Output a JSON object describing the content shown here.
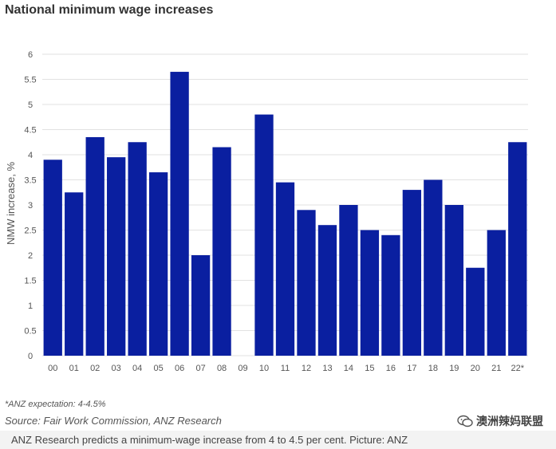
{
  "title": "National minimum wage increases",
  "chart_data": {
    "type": "bar",
    "categories": [
      "00",
      "01",
      "02",
      "03",
      "04",
      "05",
      "06",
      "07",
      "08",
      "09",
      "10",
      "11",
      "12",
      "13",
      "14",
      "15",
      "16",
      "17",
      "18",
      "19",
      "20",
      "21",
      "22*"
    ],
    "values": [
      3.9,
      3.25,
      4.35,
      3.95,
      4.25,
      3.65,
      5.65,
      2.0,
      4.15,
      null,
      4.8,
      3.45,
      2.9,
      2.6,
      3.0,
      2.5,
      2.4,
      3.3,
      3.5,
      3.0,
      1.75,
      2.5,
      4.25
    ],
    "yticks": [
      "0",
      "0.5",
      "1",
      "1.5",
      "2",
      "2.5",
      "3",
      "3.5",
      "4",
      "4.5",
      "5",
      "5.5",
      "6"
    ],
    "ylim": [
      0,
      6
    ],
    "ylabel": "NMW increase, %",
    "xlabel": "",
    "grid": true,
    "bar_color": "#0a1fa0"
  },
  "footnote": "*ANZ expectation: 4-4.5%",
  "source": "Source: Fair Work Commission, ANZ Research",
  "caption": "ANZ Research predicts a minimum-wage increase from 4 to 4.5 per cent. Picture: ANZ",
  "watermark": "澳洲辣妈联盟",
  "watermark_icon": "wechat-icon"
}
